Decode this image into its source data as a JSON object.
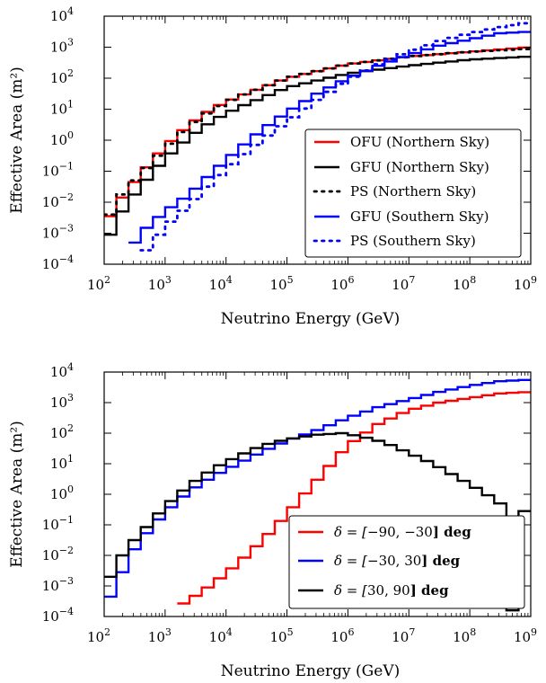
{
  "chart_data": [
    {
      "type": "line",
      "xlabel": "Neutrino Energy (GeV)",
      "ylabel": "Effective Area (m²)",
      "xscale": "log",
      "yscale": "log",
      "xlim": [
        100,
        1000000000
      ],
      "ylim": [
        0.0001,
        10000
      ],
      "xticks": [
        "10",
        "10",
        "10",
        "10",
        "10",
        "10",
        "10",
        "10"
      ],
      "xtick_exponents": [
        "2",
        "3",
        "4",
        "5",
        "6",
        "7",
        "8",
        "9"
      ],
      "yticks": [
        "10",
        "10",
        "10",
        "10",
        "10",
        "10",
        "10",
        "10",
        "10"
      ],
      "ytick_exponents": [
        "−4",
        "−3",
        "−2",
        "−1",
        "0",
        "1",
        "2",
        "3",
        "4"
      ],
      "legend_position": "lower-right",
      "step_log_x_start": 2.0,
      "step_log_x_end": 9.0,
      "series": [
        {
          "name": "OFU (Northern Sky)",
          "color": "#ff0000",
          "dash": "solid",
          "log_x": [
            2.0,
            2.2,
            2.4,
            2.6,
            3.0,
            3.4,
            3.8,
            4.2,
            5.0,
            6.0,
            7.0,
            8.0,
            9.0
          ],
          "log_y": [
            -2.8,
            -2.1,
            -1.6,
            -1.1,
            -0.2,
            0.5,
            1.05,
            1.4,
            2.0,
            2.45,
            2.7,
            2.85,
            3.0
          ]
        },
        {
          "name": "GFU (Northern Sky)",
          "color": "#000000",
          "dash": "solid",
          "log_x": [
            2.0,
            2.2,
            2.4,
            2.6,
            3.0,
            3.4,
            3.8,
            4.2,
            5.0,
            6.0,
            7.0,
            8.0,
            9.0
          ],
          "log_y": [
            -3.5,
            -2.6,
            -2.0,
            -1.5,
            -0.6,
            0.1,
            0.65,
            1.05,
            1.7,
            2.15,
            2.4,
            2.6,
            2.7
          ]
        },
        {
          "name": "PS (Northern Sky)",
          "color": "#000000",
          "dash": "dotted",
          "log_x": [
            2.0,
            2.2,
            2.4,
            2.6,
            3.0,
            3.4,
            3.8,
            4.2,
            5.0,
            6.0,
            7.0,
            8.0,
            9.0
          ],
          "log_y": [
            -2.8,
            -2.0,
            -1.5,
            -1.1,
            -0.3,
            0.45,
            1.0,
            1.4,
            2.0,
            2.45,
            2.7,
            2.85,
            2.95
          ]
        },
        {
          "name": "GFU (Southern Sky)",
          "color": "#0000ff",
          "dash": "solid",
          "log_x": [
            2.4,
            2.6,
            3.0,
            3.4,
            3.8,
            4.2,
            4.6,
            5.0,
            5.5,
            6.0,
            6.5,
            7.0,
            7.5,
            8.0,
            8.5,
            9.0
          ],
          "log_y": [
            -3.6,
            -3.0,
            -2.3,
            -1.75,
            -1.0,
            -0.3,
            0.35,
            0.9,
            1.5,
            2.0,
            2.4,
            2.75,
            3.05,
            3.25,
            3.45,
            3.5
          ]
        },
        {
          "name": "PS (Southern Sky)",
          "color": "#0000ff",
          "dash": "dotted",
          "log_x": [
            2.6,
            3.0,
            3.4,
            3.8,
            4.2,
            4.6,
            5.0,
            5.5,
            6.0,
            6.5,
            7.0,
            7.5,
            8.0,
            8.5,
            9.0
          ],
          "log_y": [
            -3.8,
            -2.8,
            -2.1,
            -1.3,
            -0.6,
            0.0,
            0.6,
            1.3,
            1.95,
            2.45,
            2.85,
            3.2,
            3.45,
            3.65,
            3.8
          ]
        }
      ]
    },
    {
      "type": "line",
      "xlabel": "Neutrino Energy (GeV)",
      "ylabel": "Effective Area (m²)",
      "xscale": "log",
      "yscale": "log",
      "xlim": [
        100,
        1000000000
      ],
      "ylim": [
        0.0001,
        10000
      ],
      "xticks": [
        "10",
        "10",
        "10",
        "10",
        "10",
        "10",
        "10",
        "10"
      ],
      "xtick_exponents": [
        "2",
        "3",
        "4",
        "5",
        "6",
        "7",
        "8",
        "9"
      ],
      "yticks": [
        "10",
        "10",
        "10",
        "10",
        "10",
        "10",
        "10",
        "10",
        "10"
      ],
      "ytick_exponents": [
        "−4",
        "−3",
        "−2",
        "−1",
        "0",
        "1",
        "2",
        "3",
        "4"
      ],
      "legend_position": "lower-right",
      "step_log_x_start": 2.0,
      "step_log_x_end": 9.0,
      "series": [
        {
          "name_prefix": "δ = [",
          "name_value": "−90, −30",
          "name_suffix": "] deg",
          "color": "#ff0000",
          "dash": "solid",
          "log_x": [
            3.2,
            3.6,
            4.0,
            4.4,
            4.8,
            5.2,
            5.6,
            6.0,
            6.5,
            7.0,
            7.5,
            8.0,
            8.5,
            9.0
          ],
          "log_y": [
            -3.7,
            -3.2,
            -2.6,
            -1.9,
            -1.1,
            -0.2,
            0.7,
            1.6,
            2.3,
            2.75,
            3.0,
            3.15,
            3.3,
            3.35
          ]
        },
        {
          "name_prefix": "δ = [",
          "name_value": "−30, 30",
          "name_suffix": "] deg",
          "color": "#0000ff",
          "dash": "solid",
          "log_x": [
            2.0,
            2.2,
            2.4,
            2.6,
            3.0,
            3.4,
            3.8,
            4.2,
            4.6,
            5.0,
            5.5,
            6.0,
            6.5,
            7.0,
            7.5,
            8.0,
            8.5,
            9.0
          ],
          "log_y": [
            -3.7,
            -3.0,
            -2.1,
            -1.5,
            -0.6,
            0.1,
            0.6,
            1.0,
            1.4,
            1.75,
            2.1,
            2.5,
            2.85,
            3.1,
            3.35,
            3.55,
            3.7,
            3.75
          ]
        },
        {
          "name_prefix": "δ = [",
          "name_value": "30, 90",
          "name_suffix": "] deg",
          "color": "#000000",
          "dash": "solid",
          "log_x": [
            2.0,
            2.2,
            2.4,
            2.6,
            3.0,
            3.4,
            3.8,
            4.2,
            4.6,
            5.0,
            5.5,
            5.9,
            6.2,
            6.6,
            7.0,
            7.4,
            7.8,
            8.2,
            8.5,
            8.7,
            8.8,
            9.0
          ],
          "log_y": [
            -3.1,
            -2.3,
            -1.7,
            -1.3,
            -0.4,
            0.3,
            0.85,
            1.25,
            1.6,
            1.8,
            1.95,
            2.0,
            1.9,
            1.7,
            1.35,
            1.0,
            0.55,
            0.1,
            -0.3,
            -3.8,
            -0.55,
            -0.55
          ]
        }
      ]
    }
  ]
}
